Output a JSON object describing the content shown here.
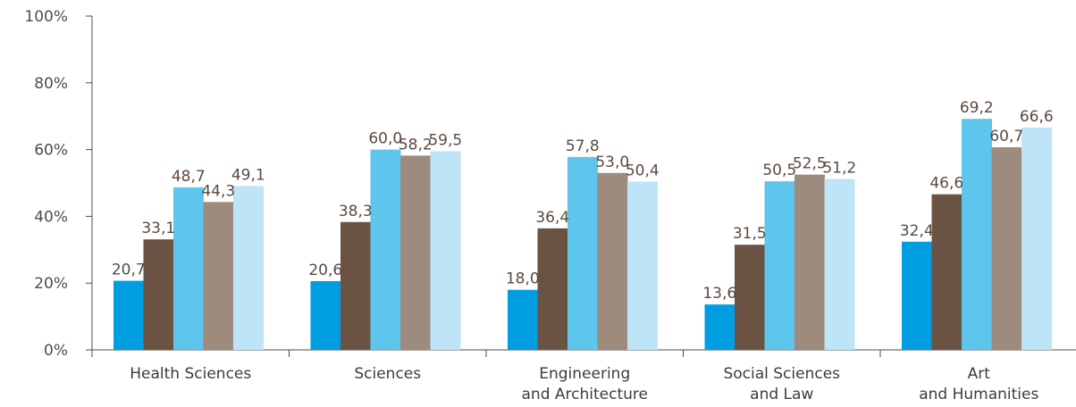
{
  "chart_data": {
    "type": "bar",
    "categories": [
      [
        "Health Sciences"
      ],
      [
        "Sciences"
      ],
      [
        "Engineering",
        "and Architecture"
      ],
      [
        "Social Sciences",
        "and Law"
      ],
      [
        "Art",
        "and Humanities"
      ]
    ],
    "series": [
      {
        "color": "#009ee0",
        "values": [
          20.7,
          20.6,
          18.0,
          13.6,
          32.4
        ],
        "labels": [
          "20,7",
          "20,6",
          "18,0",
          "13,6",
          "32,4"
        ]
      },
      {
        "color": "#6b5344",
        "values": [
          33.1,
          38.3,
          36.4,
          31.5,
          46.6
        ],
        "labels": [
          "33,1",
          "38,3",
          "36,4",
          "31,5",
          "46,6"
        ]
      },
      {
        "color": "#5ec5ed",
        "values": [
          48.7,
          60.0,
          57.8,
          50.5,
          69.2
        ],
        "labels": [
          "48,7",
          "60,0",
          "57,8",
          "50,5",
          "69,2"
        ]
      },
      {
        "color": "#9d8b7e",
        "values": [
          44.3,
          58.2,
          53.0,
          52.5,
          60.7
        ],
        "labels": [
          "44,3",
          "58,2",
          "53,0",
          "52,5",
          "60,7"
        ]
      },
      {
        "color": "#bde4f7",
        "values": [
          49.1,
          59.5,
          50.4,
          51.2,
          66.6
        ],
        "labels": [
          "49,1",
          "59,5",
          "50,4",
          "51,2",
          "66,6"
        ]
      }
    ],
    "y_ticks": [
      "0%",
      "20%",
      "40%",
      "60%",
      "80%",
      "100%"
    ],
    "ylim": [
      0,
      100
    ],
    "grid": false,
    "legend": "none"
  }
}
